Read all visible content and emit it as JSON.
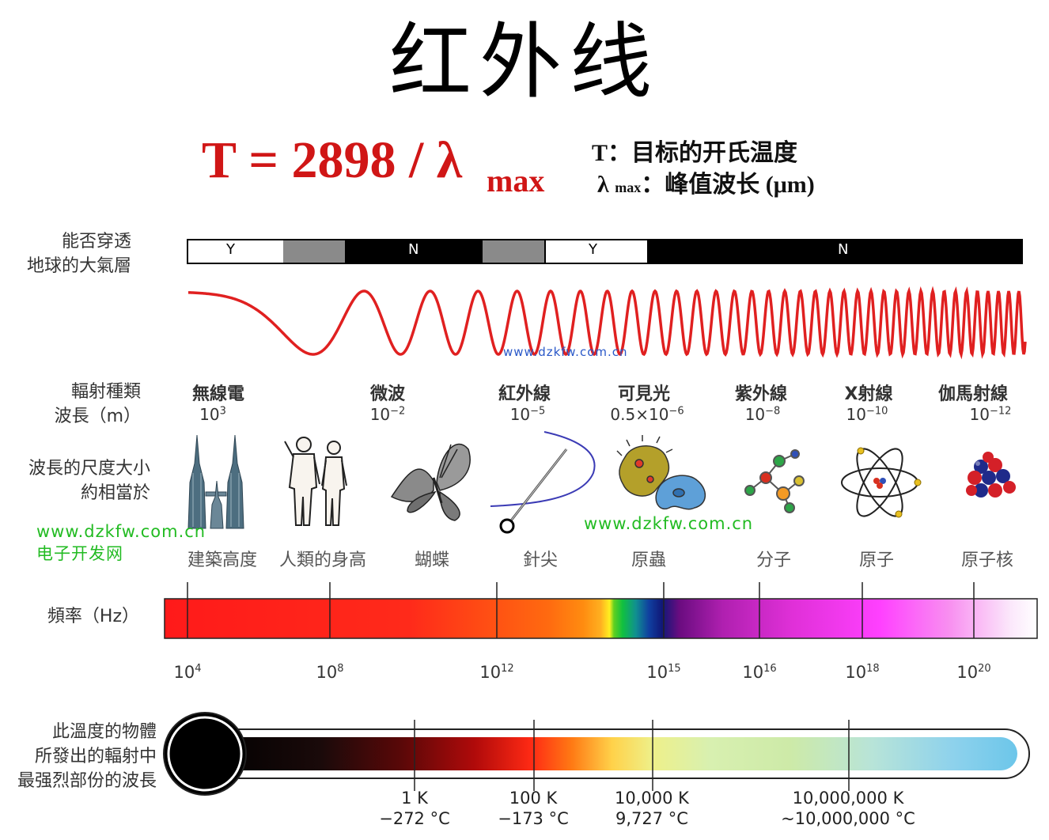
{
  "title": "红外线",
  "formula": {
    "main": "T = 2898 / λ",
    "sub": "max"
  },
  "legend": {
    "t_key": "T",
    "t_desc": "：目标的开氏温度",
    "lambda_key": "λ",
    "lambda_sub": "max",
    "lambda_desc": "：峰值波长 (μm)"
  },
  "atmosphere": {
    "label_line1": "能否穿透",
    "label_line2": "地球的大氣層",
    "segments": [
      "Y",
      "N",
      "Y",
      "N"
    ]
  },
  "radiation": {
    "label_line1": "輻射種類",
    "label_line2": "波長（m）",
    "types": [
      {
        "name": "無線電",
        "base": "10",
        "exp": "3"
      },
      {
        "name": "微波",
        "base": "10",
        "exp": "−2"
      },
      {
        "name": "紅外線",
        "base": "10",
        "exp": "−5"
      },
      {
        "name": "可見光",
        "base": "0.5×10",
        "exp": "−6"
      },
      {
        "name": "紫外線",
        "base": "10",
        "exp": "−8"
      },
      {
        "name": "X射線",
        "base": "10",
        "exp": "−10"
      },
      {
        "name": "伽馬射線",
        "base": "10",
        "exp": "−12"
      }
    ]
  },
  "scale": {
    "label_line1": "波長的尺度大小",
    "label_line2": "約相當於",
    "objects": [
      "建築高度",
      "人類的身高",
      "蝴蝶",
      "針尖",
      "原蟲",
      "分子",
      "原子",
      "原子核"
    ]
  },
  "frequency": {
    "label": "頻率（Hz）",
    "ticks": [
      {
        "base": "10",
        "exp": "4"
      },
      {
        "base": "10",
        "exp": "8"
      },
      {
        "base": "10",
        "exp": "12"
      },
      {
        "base": "10",
        "exp": "15"
      },
      {
        "base": "10",
        "exp": "16"
      },
      {
        "base": "10",
        "exp": "18"
      },
      {
        "base": "10",
        "exp": "20"
      }
    ]
  },
  "temperature": {
    "label_line1": "此溫度的物體",
    "label_line2": "所發出的輻射中",
    "label_line3": "最强烈部份的波長",
    "ticks": [
      {
        "k": "1 K",
        "c": "−272 °C"
      },
      {
        "k": "100 K",
        "c": "−173 °C"
      },
      {
        "k": "10,000 K",
        "c": "9,727 °C"
      },
      {
        "k": "10,000,000 K",
        "c": "~10,000,000 °C"
      }
    ]
  },
  "watermarks": {
    "url": "www.dzkfw.com.cn",
    "site_name": "电子开发网"
  }
}
